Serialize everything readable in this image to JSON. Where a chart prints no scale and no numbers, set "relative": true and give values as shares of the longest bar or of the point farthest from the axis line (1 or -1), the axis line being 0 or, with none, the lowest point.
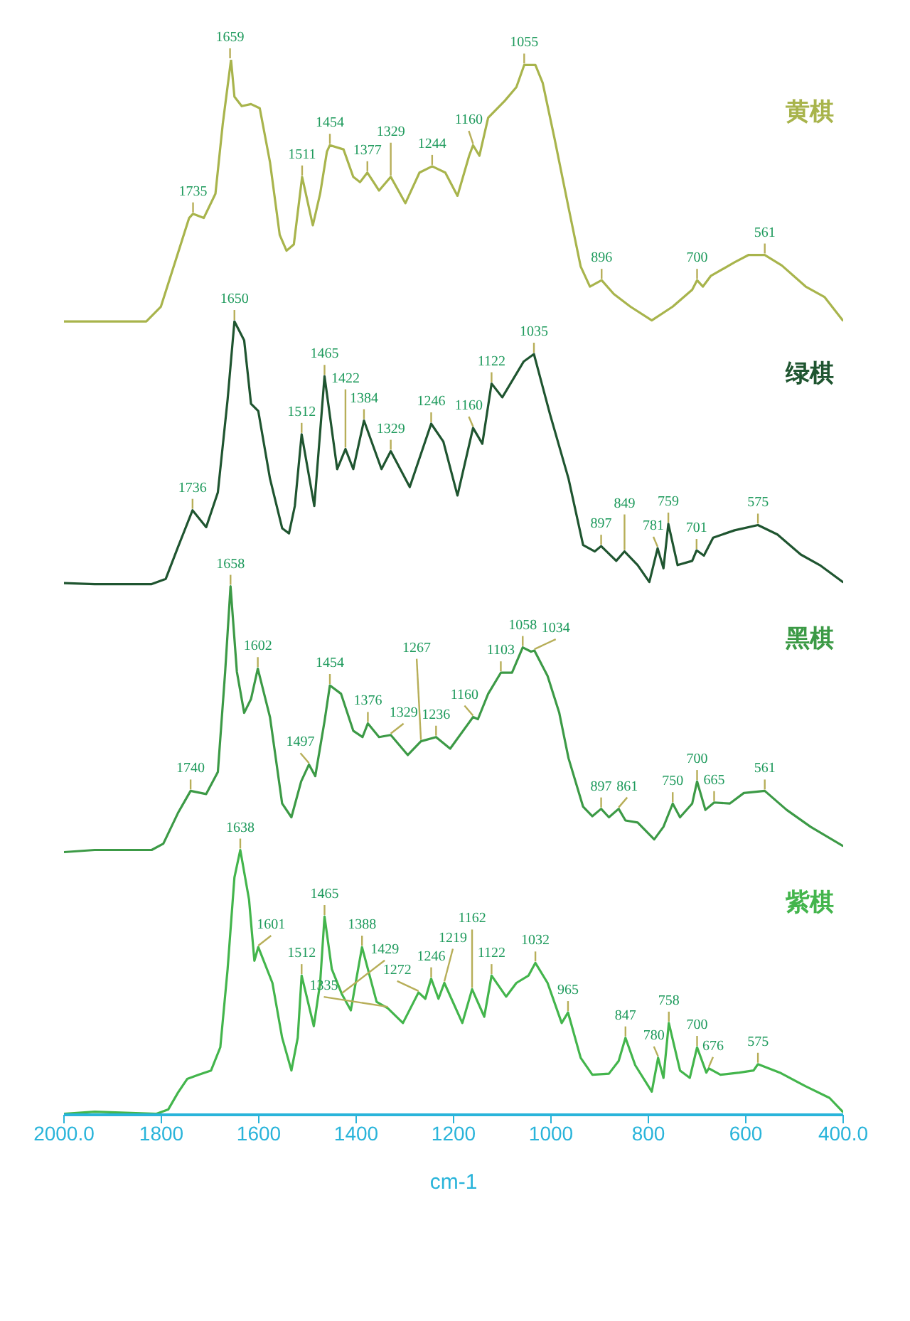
{
  "chart_data": {
    "type": "line",
    "relative": true,
    "xlabel": "cm-1",
    "xlim": [
      2000,
      400
    ],
    "xticks": [
      {
        "value": 2000,
        "label": "2000.0"
      },
      1800,
      1600,
      1400,
      1200,
      1000,
      800,
      600,
      {
        "value": 400,
        "label": "400.0"
      }
    ],
    "series": [
      {
        "name": "黄棋",
        "color": "#a8b44c",
        "x": [
          2000,
          1831,
          1801,
          1772,
          1743,
          1735,
          1713,
          1689,
          1674,
          1657,
          1650,
          1635,
          1616,
          1598,
          1577,
          1557,
          1543,
          1528,
          1511,
          1489,
          1474,
          1460,
          1454,
          1426,
          1406,
          1392,
          1377,
          1353,
          1329,
          1299,
          1270,
          1244,
          1217,
          1192,
          1168,
          1160,
          1147,
          1129,
          1095,
          1071,
          1055,
          1032,
          1017,
          993,
          964,
          939,
          920,
          896,
          871,
          837,
          793,
          750,
          710,
          700,
          688,
          672,
          623,
          594,
          561,
          526,
          477,
          438,
          401
        ],
        "values": [
          0.752,
          0.752,
          0.766,
          0.808,
          0.85,
          0.854,
          0.85,
          0.873,
          0.939,
          1.0,
          0.965,
          0.956,
          0.958,
          0.954,
          0.903,
          0.834,
          0.819,
          0.825,
          0.889,
          0.843,
          0.873,
          0.913,
          0.919,
          0.915,
          0.889,
          0.884,
          0.893,
          0.876,
          0.889,
          0.864,
          0.893,
          0.899,
          0.893,
          0.871,
          0.909,
          0.919,
          0.909,
          0.945,
          0.961,
          0.974,
          0.995,
          0.995,
          0.978,
          0.926,
          0.86,
          0.804,
          0.785,
          0.791,
          0.778,
          0.766,
          0.753,
          0.766,
          0.782,
          0.791,
          0.785,
          0.795,
          0.808,
          0.815,
          0.815,
          0.805,
          0.785,
          0.775,
          0.753
        ]
      },
      {
        "name": "绿棋",
        "color": "#1f5530",
        "x": [
          2000,
          1937,
          1820,
          1791,
          1766,
          1736,
          1708,
          1684,
          1664,
          1650,
          1630,
          1616,
          1601,
          1577,
          1552,
          1538,
          1526,
          1512,
          1486,
          1465,
          1439,
          1422,
          1406,
          1384,
          1348,
          1329,
          1290,
          1246,
          1221,
          1192,
          1160,
          1141,
          1122,
          1100,
          1056,
          1035,
          1002,
          964,
          934,
          910,
          897,
          866,
          849,
          822,
          798,
          781,
          769,
          759,
          740,
          710,
          701,
          686,
          667,
          623,
          575,
          535,
          487,
          448,
          401
        ],
        "values": [
          0.504,
          0.503,
          0.503,
          0.508,
          0.538,
          0.573,
          0.557,
          0.59,
          0.678,
          0.752,
          0.734,
          0.674,
          0.667,
          0.603,
          0.556,
          0.551,
          0.577,
          0.645,
          0.577,
          0.7,
          0.612,
          0.631,
          0.612,
          0.658,
          0.612,
          0.629,
          0.595,
          0.655,
          0.638,
          0.587,
          0.651,
          0.636,
          0.693,
          0.68,
          0.714,
          0.721,
          0.664,
          0.603,
          0.54,
          0.534,
          0.539,
          0.525,
          0.534,
          0.521,
          0.505,
          0.537,
          0.518,
          0.56,
          0.521,
          0.525,
          0.535,
          0.53,
          0.547,
          0.554,
          0.559,
          0.55,
          0.531,
          0.521,
          0.505
        ]
      },
      {
        "name": "黑棋",
        "color": "#3c9a46",
        "x": [
          2000,
          1937,
          1820,
          1796,
          1766,
          1740,
          1708,
          1684,
          1669,
          1658,
          1645,
          1630,
          1616,
          1602,
          1577,
          1552,
          1533,
          1513,
          1497,
          1484,
          1465,
          1454,
          1431,
          1406,
          1387,
          1376,
          1353,
          1329,
          1294,
          1267,
          1236,
          1207,
          1160,
          1150,
          1129,
          1103,
          1080,
          1058,
          1041,
          1034,
          1007,
          983,
          964,
          934,
          915,
          897,
          881,
          861,
          847,
          822,
          788,
          769,
          750,
          735,
          710,
          700,
          683,
          665,
          633,
          604,
          561,
          516,
          467,
          401
        ],
        "values": [
          0.249,
          0.251,
          0.251,
          0.257,
          0.286,
          0.307,
          0.304,
          0.325,
          0.42,
          0.501,
          0.42,
          0.381,
          0.394,
          0.423,
          0.377,
          0.295,
          0.282,
          0.316,
          0.332,
          0.321,
          0.373,
          0.407,
          0.399,
          0.364,
          0.358,
          0.371,
          0.358,
          0.36,
          0.341,
          0.354,
          0.358,
          0.347,
          0.377,
          0.375,
          0.399,
          0.419,
          0.419,
          0.443,
          0.439,
          0.44,
          0.416,
          0.381,
          0.338,
          0.292,
          0.283,
          0.29,
          0.282,
          0.29,
          0.279,
          0.277,
          0.261,
          0.273,
          0.295,
          0.282,
          0.295,
          0.316,
          0.289,
          0.296,
          0.295,
          0.305,
          0.307,
          0.289,
          0.273,
          0.255
        ]
      },
      {
        "name": "紫棋",
        "color": "#43b54c",
        "x": [
          2000,
          1937,
          1810,
          1786,
          1766,
          1747,
          1723,
          1698,
          1679,
          1664,
          1650,
          1638,
          1620,
          1609,
          1601,
          1572,
          1552,
          1533,
          1520,
          1512,
          1487,
          1474,
          1465,
          1450,
          1429,
          1411,
          1388,
          1358,
          1335,
          1304,
          1272,
          1258,
          1246,
          1231,
          1219,
          1182,
          1162,
          1137,
          1122,
          1092,
          1071,
          1046,
          1032,
          1007,
          978,
          965,
          939,
          915,
          881,
          861,
          847,
          827,
          793,
          780,
          769,
          758,
          735,
          715,
          700,
          681,
          676,
          652,
          613,
          584,
          575,
          530,
          477,
          428,
          401
        ],
        "values": [
          0.001,
          0.003,
          0.001,
          0.005,
          0.021,
          0.034,
          0.038,
          0.042,
          0.064,
          0.138,
          0.225,
          0.251,
          0.204,
          0.146,
          0.159,
          0.125,
          0.073,
          0.042,
          0.073,
          0.132,
          0.084,
          0.125,
          0.188,
          0.138,
          0.114,
          0.099,
          0.159,
          0.107,
          0.101,
          0.087,
          0.116,
          0.11,
          0.129,
          0.11,
          0.125,
          0.087,
          0.119,
          0.093,
          0.132,
          0.112,
          0.125,
          0.132,
          0.144,
          0.125,
          0.087,
          0.097,
          0.054,
          0.038,
          0.039,
          0.051,
          0.073,
          0.047,
          0.022,
          0.054,
          0.035,
          0.087,
          0.042,
          0.035,
          0.064,
          0.04,
          0.044,
          0.038,
          0.04,
          0.042,
          0.048,
          0.04,
          0.027,
          0.016,
          0.003
        ]
      }
    ],
    "annotations": [
      {
        "text": "1735",
        "x": 1735,
        "y": 0.854
      },
      {
        "text": "1659",
        "x": 1659,
        "y": 1.0
      },
      {
        "text": "1511",
        "x": 1511,
        "y": 0.889
      },
      {
        "text": "1454",
        "x": 1454,
        "y": 0.919
      },
      {
        "text": "1377",
        "x": 1377,
        "y": 0.893
      },
      {
        "text": "1329",
        "x": 1329,
        "y": 0.889
      },
      {
        "text": "1244",
        "x": 1244,
        "y": 0.899
      },
      {
        "text": "1160",
        "x": 1160,
        "y": 0.919
      },
      {
        "text": "1055",
        "x": 1055,
        "y": 0.995
      },
      {
        "text": "896",
        "x": 896,
        "y": 0.791
      },
      {
        "text": "700",
        "x": 700,
        "y": 0.791
      },
      {
        "text": "561",
        "x": 561,
        "y": 0.815
      },
      {
        "text": "1736",
        "x": 1736,
        "y": 0.573
      },
      {
        "text": "1650",
        "x": 1650,
        "y": 0.752
      },
      {
        "text": "1512",
        "x": 1512,
        "y": 0.645
      },
      {
        "text": "1465",
        "x": 1465,
        "y": 0.7
      },
      {
        "text": "1422",
        "x": 1422,
        "y": 0.631
      },
      {
        "text": "1384",
        "x": 1384,
        "y": 0.658
      },
      {
        "text": "1329",
        "x": 1329,
        "y": 0.629
      },
      {
        "text": "1246",
        "x": 1246,
        "y": 0.655
      },
      {
        "text": "1160",
        "x": 1160,
        "y": 0.651
      },
      {
        "text": "1122",
        "x": 1122,
        "y": 0.693
      },
      {
        "text": "1035",
        "x": 1035,
        "y": 0.721
      },
      {
        "text": "897",
        "x": 897,
        "y": 0.539
      },
      {
        "text": "849",
        "x": 849,
        "y": 0.534
      },
      {
        "text": "781",
        "x": 781,
        "y": 0.537
      },
      {
        "text": "759",
        "x": 759,
        "y": 0.56
      },
      {
        "text": "701",
        "x": 701,
        "y": 0.535
      },
      {
        "text": "575",
        "x": 575,
        "y": 0.559
      },
      {
        "text": "1740",
        "x": 1740,
        "y": 0.307
      },
      {
        "text": "1658",
        "x": 1658,
        "y": 0.501
      },
      {
        "text": "1602",
        "x": 1602,
        "y": 0.423
      },
      {
        "text": "1497",
        "x": 1497,
        "y": 0.332
      },
      {
        "text": "1454",
        "x": 1454,
        "y": 0.407
      },
      {
        "text": "1376",
        "x": 1376,
        "y": 0.371
      },
      {
        "text": "1329",
        "x": 1329,
        "y": 0.36
      },
      {
        "text": "1267",
        "x": 1267,
        "y": 0.354
      },
      {
        "text": "1236",
        "x": 1236,
        "y": 0.358
      },
      {
        "text": "1160",
        "x": 1160,
        "y": 0.377
      },
      {
        "text": "1103",
        "x": 1103,
        "y": 0.419
      },
      {
        "text": "1058",
        "x": 1058,
        "y": 0.443
      },
      {
        "text": "1034",
        "x": 1034,
        "y": 0.44
      },
      {
        "text": "897",
        "x": 897,
        "y": 0.29
      },
      {
        "text": "861",
        "x": 861,
        "y": 0.29
      },
      {
        "text": "750",
        "x": 750,
        "y": 0.295
      },
      {
        "text": "700",
        "x": 700,
        "y": 0.316
      },
      {
        "text": "665",
        "x": 665,
        "y": 0.296
      },
      {
        "text": "561",
        "x": 561,
        "y": 0.307
      },
      {
        "text": "1638",
        "x": 1638,
        "y": 0.251
      },
      {
        "text": "1601",
        "x": 1601,
        "y": 0.159
      },
      {
        "text": "1512",
        "x": 1512,
        "y": 0.132
      },
      {
        "text": "1465",
        "x": 1465,
        "y": 0.188
      },
      {
        "text": "1429",
        "x": 1429,
        "y": 0.114
      },
      {
        "text": "1388",
        "x": 1388,
        "y": 0.159
      },
      {
        "text": "1335",
        "x": 1335,
        "y": 0.101
      },
      {
        "text": "1272",
        "x": 1272,
        "y": 0.116
      },
      {
        "text": "1246",
        "x": 1246,
        "y": 0.129
      },
      {
        "text": "1219",
        "x": 1219,
        "y": 0.125
      },
      {
        "text": "1162",
        "x": 1162,
        "y": 0.119
      },
      {
        "text": "1122",
        "x": 1122,
        "y": 0.132
      },
      {
        "text": "1032",
        "x": 1032,
        "y": 0.144
      },
      {
        "text": "965",
        "x": 965,
        "y": 0.097
      },
      {
        "text": "847",
        "x": 847,
        "y": 0.073
      },
      {
        "text": "780",
        "x": 780,
        "y": 0.054
      },
      {
        "text": "758",
        "x": 758,
        "y": 0.087
      },
      {
        "text": "700",
        "x": 700,
        "y": 0.064
      },
      {
        "text": "676",
        "x": 676,
        "y": 0.044
      },
      {
        "text": "575",
        "x": 575,
        "y": 0.048
      }
    ]
  }
}
